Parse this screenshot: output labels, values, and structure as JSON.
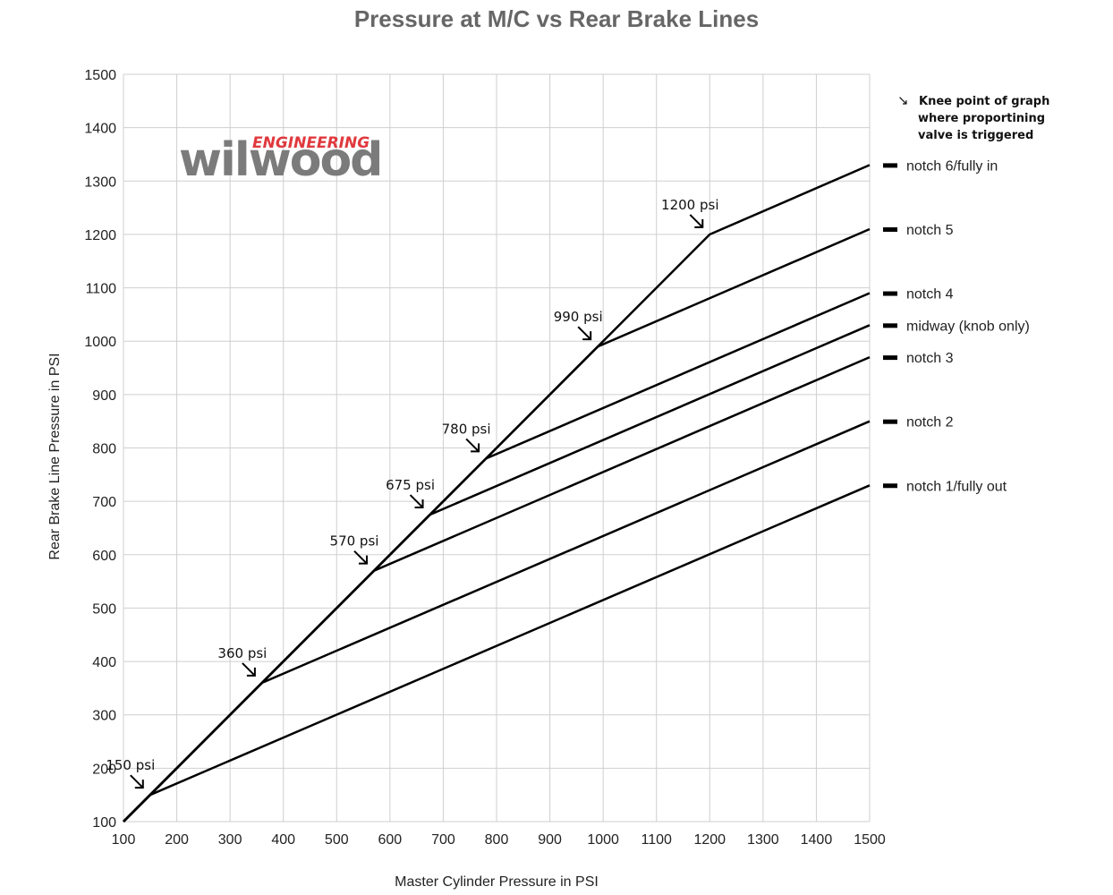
{
  "chart_data": {
    "type": "line",
    "title": "Pressure at M/C vs Rear Brake Lines",
    "xlabel": "Master Cylinder Pressure in PSI",
    "ylabel": "Rear Brake Line Pressure in PSI",
    "xlim": [
      100,
      1500
    ],
    "ylim": [
      100,
      1500
    ],
    "x_ticks": [
      100,
      200,
      300,
      400,
      500,
      600,
      700,
      800,
      900,
      1000,
      1100,
      1200,
      1300,
      1400,
      1500
    ],
    "y_ticks": [
      100,
      200,
      300,
      400,
      500,
      600,
      700,
      800,
      900,
      1000,
      1100,
      1200,
      1300,
      1400,
      1500
    ],
    "grid": true,
    "legend_position": "right",
    "series": [
      {
        "name": "notch 6/fully in",
        "x": [
          100,
          1200,
          1500
        ],
        "y": [
          100,
          1200,
          1330
        ]
      },
      {
        "name": "notch 5",
        "x": [
          100,
          990,
          1500
        ],
        "y": [
          100,
          990,
          1210
        ]
      },
      {
        "name": "notch 4",
        "x": [
          100,
          780,
          1500
        ],
        "y": [
          100,
          780,
          1090
        ]
      },
      {
        "name": "midway (knob only)",
        "x": [
          100,
          675,
          1500
        ],
        "y": [
          100,
          675,
          1030
        ]
      },
      {
        "name": "notch 3",
        "x": [
          100,
          570,
          1500
        ],
        "y": [
          100,
          570,
          970
        ]
      },
      {
        "name": "notch 2",
        "x": [
          100,
          360,
          1500
        ],
        "y": [
          100,
          360,
          850
        ]
      },
      {
        "name": "notch 1/fully out",
        "x": [
          100,
          150,
          1500
        ],
        "y": [
          100,
          150,
          730
        ]
      }
    ],
    "annotations": [
      {
        "text": "1200 psi",
        "x": 1200,
        "y": 1200
      },
      {
        "text": "990 psi",
        "x": 990,
        "y": 990
      },
      {
        "text": "780 psi",
        "x": 780,
        "y": 780
      },
      {
        "text": "675 psi",
        "x": 675,
        "y": 675
      },
      {
        "text": "570 psi",
        "x": 570,
        "y": 570
      },
      {
        "text": "360 psi",
        "x": 360,
        "y": 360
      },
      {
        "text": "150 psi",
        "x": 150,
        "y": 150
      }
    ],
    "note": {
      "arrow_glyph": "↘",
      "lines": [
        "Knee point of graph",
        "where proportining",
        "valve is triggered"
      ]
    }
  },
  "logo": {
    "main": "wilwood",
    "sub": "ENGINEERING"
  }
}
